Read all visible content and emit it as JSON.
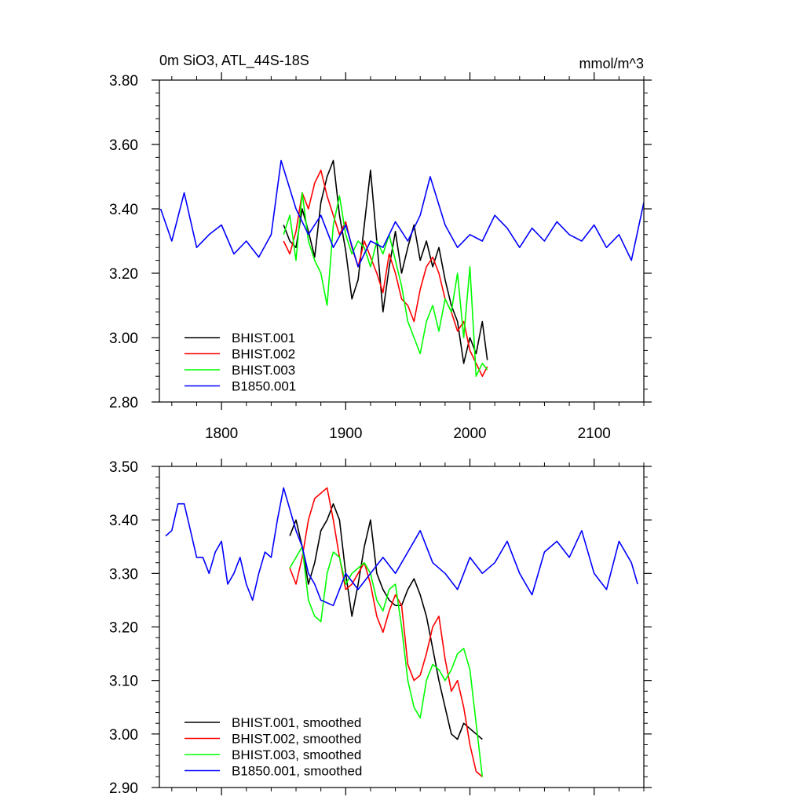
{
  "chart_data": [
    {
      "type": "line",
      "title_left": "0m SiO3, ATL_44S-18S",
      "title_right": "mmol/m^3",
      "xlim": [
        1750,
        2140
      ],
      "ylim": [
        2.8,
        3.8
      ],
      "xticks": [
        1800,
        1900,
        2000,
        2100
      ],
      "xtick_labels": [
        "1800",
        "1900",
        "2000",
        "2100"
      ],
      "yticks": [
        2.8,
        3.0,
        3.2,
        3.4,
        3.6,
        3.8
      ],
      "ytick_labels": [
        "2.80",
        "3.00",
        "3.20",
        "3.40",
        "3.60",
        "3.80"
      ],
      "legend_position": "bottom-left",
      "series": [
        {
          "name": "BHIST.001",
          "color": "#000000",
          "x": [
            1850,
            1855,
            1860,
            1865,
            1870,
            1875,
            1880,
            1885,
            1890,
            1895,
            1900,
            1905,
            1910,
            1915,
            1920,
            1925,
            1930,
            1935,
            1940,
            1945,
            1950,
            1955,
            1960,
            1965,
            1970,
            1975,
            1980,
            1985,
            1990,
            1995,
            2000,
            2005,
            2010,
            2014
          ],
          "y": [
            3.35,
            3.3,
            3.28,
            3.4,
            3.33,
            3.25,
            3.42,
            3.5,
            3.55,
            3.38,
            3.27,
            3.12,
            3.18,
            3.35,
            3.52,
            3.3,
            3.08,
            3.22,
            3.33,
            3.2,
            3.28,
            3.35,
            3.24,
            3.3,
            3.22,
            3.28,
            3.18,
            3.1,
            3.05,
            2.92,
            3.0,
            2.95,
            3.05,
            2.93
          ]
        },
        {
          "name": "BHIST.002",
          "color": "#ff0000",
          "x": [
            1850,
            1855,
            1860,
            1865,
            1870,
            1875,
            1880,
            1885,
            1890,
            1895,
            1900,
            1905,
            1910,
            1915,
            1920,
            1925,
            1930,
            1935,
            1940,
            1945,
            1950,
            1955,
            1960,
            1965,
            1970,
            1975,
            1980,
            1985,
            1990,
            1995,
            2000,
            2005,
            2010,
            2014
          ],
          "y": [
            3.3,
            3.26,
            3.33,
            3.45,
            3.4,
            3.48,
            3.52,
            3.44,
            3.38,
            3.32,
            3.36,
            3.28,
            3.22,
            3.3,
            3.25,
            3.2,
            3.14,
            3.26,
            3.2,
            3.12,
            3.1,
            3.05,
            3.15,
            3.22,
            3.25,
            3.2,
            3.12,
            3.08,
            3.02,
            3.05,
            2.96,
            2.92,
            2.88,
            2.91
          ]
        },
        {
          "name": "BHIST.003",
          "color": "#00ff00",
          "x": [
            1850,
            1855,
            1860,
            1865,
            1870,
            1875,
            1880,
            1885,
            1890,
            1895,
            1900,
            1905,
            1910,
            1915,
            1920,
            1925,
            1930,
            1935,
            1940,
            1945,
            1950,
            1955,
            1960,
            1965,
            1970,
            1975,
            1980,
            1985,
            1990,
            1995,
            2000,
            2005,
            2010,
            2014
          ],
          "y": [
            3.32,
            3.38,
            3.24,
            3.45,
            3.3,
            3.24,
            3.2,
            3.1,
            3.35,
            3.44,
            3.32,
            3.26,
            3.3,
            3.28,
            3.22,
            3.3,
            3.26,
            3.32,
            3.24,
            3.16,
            3.05,
            3.0,
            2.95,
            3.05,
            3.1,
            3.02,
            3.12,
            3.08,
            3.2,
            3.0,
            3.22,
            2.88,
            2.92,
            2.9
          ]
        },
        {
          "name": "B1850.001",
          "color": "#0000ff",
          "x": [
            1751,
            1760,
            1770,
            1780,
            1790,
            1800,
            1810,
            1820,
            1830,
            1840,
            1848,
            1860,
            1870,
            1880,
            1890,
            1900,
            1910,
            1920,
            1930,
            1940,
            1950,
            1960,
            1968,
            1980,
            1990,
            2000,
            2010,
            2020,
            2030,
            2040,
            2050,
            2060,
            2070,
            2080,
            2090,
            2100,
            2110,
            2120,
            2130,
            2140
          ],
          "y": [
            3.4,
            3.3,
            3.45,
            3.28,
            3.32,
            3.35,
            3.26,
            3.3,
            3.25,
            3.32,
            3.55,
            3.4,
            3.32,
            3.38,
            3.28,
            3.35,
            3.22,
            3.3,
            3.28,
            3.36,
            3.3,
            3.38,
            3.5,
            3.35,
            3.28,
            3.32,
            3.3,
            3.38,
            3.34,
            3.28,
            3.34,
            3.3,
            3.36,
            3.32,
            3.3,
            3.35,
            3.28,
            3.32,
            3.24,
            3.42
          ]
        }
      ]
    },
    {
      "type": "line",
      "xlim": [
        1750,
        2140
      ],
      "ylim": [
        2.9,
        3.5
      ],
      "xticks": [
        1800,
        1900,
        2000,
        2100
      ],
      "yticks": [
        2.9,
        3.0,
        3.1,
        3.2,
        3.3,
        3.4,
        3.5
      ],
      "ytick_labels": [
        "2.90",
        "3.00",
        "3.10",
        "3.20",
        "3.30",
        "3.40",
        "3.50"
      ],
      "legend_position": "bottom-left",
      "series": [
        {
          "name": "BHIST.001, smoothed",
          "color": "#000000",
          "x": [
            1855,
            1860,
            1865,
            1870,
            1875,
            1880,
            1885,
            1890,
            1895,
            1900,
            1905,
            1910,
            1915,
            1920,
            1925,
            1930,
            1935,
            1940,
            1945,
            1950,
            1955,
            1960,
            1965,
            1970,
            1975,
            1980,
            1985,
            1990,
            1995,
            2000,
            2005,
            2010
          ],
          "y": [
            3.37,
            3.4,
            3.35,
            3.28,
            3.32,
            3.38,
            3.4,
            3.43,
            3.4,
            3.3,
            3.22,
            3.28,
            3.35,
            3.4,
            3.3,
            3.27,
            3.25,
            3.24,
            3.24,
            3.27,
            3.29,
            3.26,
            3.22,
            3.16,
            3.1,
            3.05,
            3.0,
            2.99,
            3.02,
            3.01,
            3.0,
            2.99
          ]
        },
        {
          "name": "BHIST.002, smoothed",
          "color": "#ff0000",
          "x": [
            1855,
            1860,
            1865,
            1870,
            1875,
            1880,
            1885,
            1890,
            1895,
            1900,
            1905,
            1910,
            1915,
            1920,
            1925,
            1930,
            1935,
            1940,
            1945,
            1950,
            1955,
            1960,
            1965,
            1970,
            1975,
            1980,
            1985,
            1990,
            1995,
            2000,
            2005,
            2010
          ],
          "y": [
            3.31,
            3.28,
            3.33,
            3.4,
            3.44,
            3.45,
            3.46,
            3.4,
            3.33,
            3.27,
            3.28,
            3.3,
            3.32,
            3.28,
            3.22,
            3.19,
            3.23,
            3.26,
            3.24,
            3.13,
            3.1,
            3.11,
            3.15,
            3.2,
            3.22,
            3.14,
            3.08,
            3.1,
            3.05,
            2.98,
            2.93,
            2.92
          ]
        },
        {
          "name": "BHIST.003, smoothed",
          "color": "#00ff00",
          "x": [
            1855,
            1860,
            1865,
            1870,
            1875,
            1880,
            1885,
            1890,
            1895,
            1900,
            1905,
            1910,
            1915,
            1920,
            1925,
            1930,
            1935,
            1940,
            1945,
            1950,
            1955,
            1960,
            1965,
            1970,
            1975,
            1980,
            1985,
            1990,
            1995,
            2000,
            2005,
            2010
          ],
          "y": [
            3.31,
            3.33,
            3.35,
            3.25,
            3.22,
            3.21,
            3.3,
            3.34,
            3.33,
            3.28,
            3.3,
            3.31,
            3.32,
            3.3,
            3.25,
            3.23,
            3.27,
            3.28,
            3.2,
            3.1,
            3.05,
            3.03,
            3.1,
            3.13,
            3.12,
            3.1,
            3.12,
            3.15,
            3.16,
            3.12,
            3.02,
            2.92
          ]
        },
        {
          "name": "B1850.001, smoothed",
          "color": "#0000ff",
          "x": [
            1755,
            1760,
            1765,
            1770,
            1775,
            1780,
            1785,
            1790,
            1795,
            1800,
            1805,
            1810,
            1815,
            1820,
            1825,
            1830,
            1835,
            1840,
            1845,
            1850,
            1855,
            1860,
            1865,
            1870,
            1875,
            1880,
            1890,
            1900,
            1910,
            1920,
            1930,
            1940,
            1950,
            1960,
            1970,
            1980,
            1990,
            2000,
            2010,
            2020,
            2030,
            2040,
            2050,
            2060,
            2070,
            2080,
            2090,
            2100,
            2110,
            2120,
            2130,
            2135
          ],
          "y": [
            3.37,
            3.38,
            3.43,
            3.43,
            3.38,
            3.33,
            3.33,
            3.3,
            3.34,
            3.36,
            3.28,
            3.3,
            3.33,
            3.28,
            3.25,
            3.3,
            3.34,
            3.33,
            3.4,
            3.46,
            3.42,
            3.38,
            3.35,
            3.3,
            3.28,
            3.25,
            3.24,
            3.3,
            3.27,
            3.3,
            3.33,
            3.3,
            3.34,
            3.38,
            3.32,
            3.3,
            3.27,
            3.33,
            3.3,
            3.32,
            3.36,
            3.3,
            3.26,
            3.34,
            3.36,
            3.33,
            3.38,
            3.3,
            3.27,
            3.36,
            3.32,
            3.28
          ]
        }
      ]
    }
  ]
}
